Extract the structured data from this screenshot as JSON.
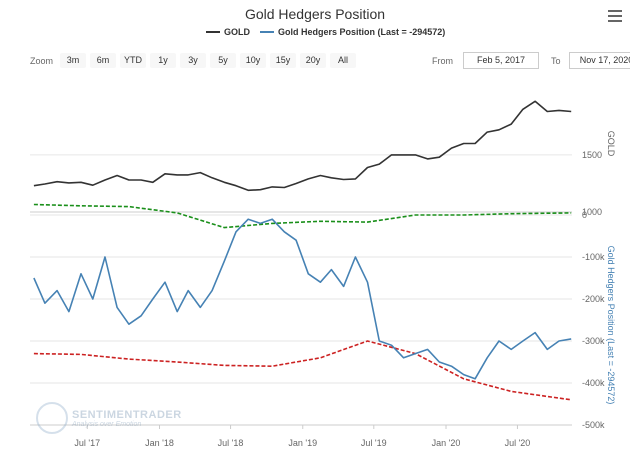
{
  "title": "Gold Hedgers Position",
  "legend": {
    "gold_label": "GOLD",
    "hedgers_label": "Gold Hedgers Position (Last = -294572)"
  },
  "zoom": {
    "label": "Zoom",
    "buttons": [
      "3m",
      "6m",
      "YTD",
      "1y",
      "3y",
      "5y",
      "10y",
      "15y",
      "20y",
      "All"
    ]
  },
  "range": {
    "from_label": "From",
    "from_value": "Feb 5, 2017",
    "to_label": "To",
    "to_value": "Nov 17, 2020"
  },
  "watermark": {
    "name": "SENTIMENTRADER",
    "tagline": "Analysis over Emotion"
  },
  "colors": {
    "gold": "#333333",
    "hedgers": "#4682b4",
    "upper_band": "#1a8f1a",
    "lower_band": "#cc2222"
  },
  "chart_data": [
    {
      "type": "line",
      "title": "Gold Hedgers Position",
      "ylabel": "GOLD",
      "ylim": [
        1000,
        2200
      ],
      "yticks": [
        1000,
        1500
      ],
      "ytick_labels": [
        "1000",
        "1500"
      ],
      "grid": true,
      "xticks": [
        "Jul '17",
        "Jan '18",
        "Jul '18",
        "Jan '19",
        "Jul '19",
        "Jan '20",
        "Jul '20"
      ],
      "series": [
        {
          "name": "GOLD",
          "x": [
            "2017-02",
            "2017-03",
            "2017-04",
            "2017-05",
            "2017-06",
            "2017-07",
            "2017-08",
            "2017-09",
            "2017-10",
            "2017-11",
            "2017-12",
            "2018-01",
            "2018-02",
            "2018-03",
            "2018-04",
            "2018-05",
            "2018-06",
            "2018-07",
            "2018-08",
            "2018-09",
            "2018-10",
            "2018-11",
            "2018-12",
            "2019-01",
            "2019-02",
            "2019-03",
            "2019-04",
            "2019-05",
            "2019-06",
            "2019-07",
            "2019-08",
            "2019-09",
            "2019-10",
            "2019-11",
            "2019-12",
            "2020-01",
            "2020-02",
            "2020-03",
            "2020-04",
            "2020-05",
            "2020-06",
            "2020-07",
            "2020-08",
            "2020-09",
            "2020-10",
            "2020-11"
          ],
          "values": [
            1230,
            1245,
            1265,
            1255,
            1260,
            1235,
            1280,
            1320,
            1280,
            1280,
            1260,
            1335,
            1325,
            1325,
            1345,
            1300,
            1260,
            1230,
            1190,
            1195,
            1220,
            1215,
            1250,
            1290,
            1320,
            1300,
            1285,
            1290,
            1390,
            1420,
            1500,
            1500,
            1500,
            1465,
            1480,
            1560,
            1600,
            1600,
            1700,
            1720,
            1770,
            1900,
            1970,
            1880,
            1890,
            1880
          ]
        }
      ]
    },
    {
      "type": "line",
      "ylabel": "Gold Hedgers Position (Last = -294572)",
      "ylim": [
        -500000,
        0
      ],
      "yticks": [
        0,
        -100000,
        -200000,
        -300000,
        -400000,
        -500000
      ],
      "ytick_labels": [
        "0",
        "-100k",
        "-200k",
        "-300k",
        "-400k",
        "-500k"
      ],
      "grid": true,
      "xticks": [
        "Jul '17",
        "Jan '18",
        "Jul '18",
        "Jan '19",
        "Jul '19",
        "Jan '20",
        "Jul '20"
      ],
      "series": [
        {
          "name": "Gold Hedgers Position",
          "x": [
            "2017-02",
            "2017-03",
            "2017-04",
            "2017-05",
            "2017-06",
            "2017-07",
            "2017-08",
            "2017-09",
            "2017-10",
            "2017-11",
            "2017-12",
            "2018-01",
            "2018-02",
            "2018-03",
            "2018-04",
            "2018-05",
            "2018-06",
            "2018-07",
            "2018-08",
            "2018-09",
            "2018-10",
            "2018-11",
            "2018-12",
            "2019-01",
            "2019-02",
            "2019-03",
            "2019-04",
            "2019-05",
            "2019-06",
            "2019-07",
            "2019-08",
            "2019-09",
            "2019-10",
            "2019-11",
            "2019-12",
            "2020-01",
            "2020-02",
            "2020-03",
            "2020-04",
            "2020-05",
            "2020-06",
            "2020-07",
            "2020-08",
            "2020-09",
            "2020-10",
            "2020-11"
          ],
          "values": [
            -150000,
            -210000,
            -180000,
            -230000,
            -140000,
            -200000,
            -100000,
            -220000,
            -260000,
            -240000,
            -200000,
            -160000,
            -230000,
            -180000,
            -220000,
            -180000,
            -110000,
            -40000,
            -10000,
            -20000,
            -10000,
            -40000,
            -60000,
            -140000,
            -160000,
            -130000,
            -170000,
            -100000,
            -160000,
            -300000,
            -310000,
            -340000,
            -330000,
            -320000,
            -350000,
            -360000,
            -380000,
            -390000,
            -340000,
            -300000,
            -320000,
            -300000,
            -280000,
            -320000,
            -300000,
            -295000
          ]
        },
        {
          "name": "Upper band",
          "x": [
            "2017-02",
            "2017-06",
            "2017-10",
            "2018-02",
            "2018-06",
            "2018-10",
            "2019-02",
            "2019-06",
            "2019-10",
            "2020-02",
            "2020-06",
            "2020-11"
          ],
          "values": [
            25000,
            22000,
            20000,
            5000,
            -30000,
            -20000,
            -15000,
            -17000,
            0,
            0,
            3000,
            5000
          ]
        },
        {
          "name": "Lower band",
          "x": [
            "2017-02",
            "2017-06",
            "2017-10",
            "2018-02",
            "2018-06",
            "2018-10",
            "2019-02",
            "2019-06",
            "2019-10",
            "2020-02",
            "2020-06",
            "2020-11"
          ],
          "values": [
            -330000,
            -332000,
            -343000,
            -350000,
            -358000,
            -360000,
            -340000,
            -300000,
            -330000,
            -390000,
            -420000,
            -440000
          ]
        }
      ]
    }
  ]
}
